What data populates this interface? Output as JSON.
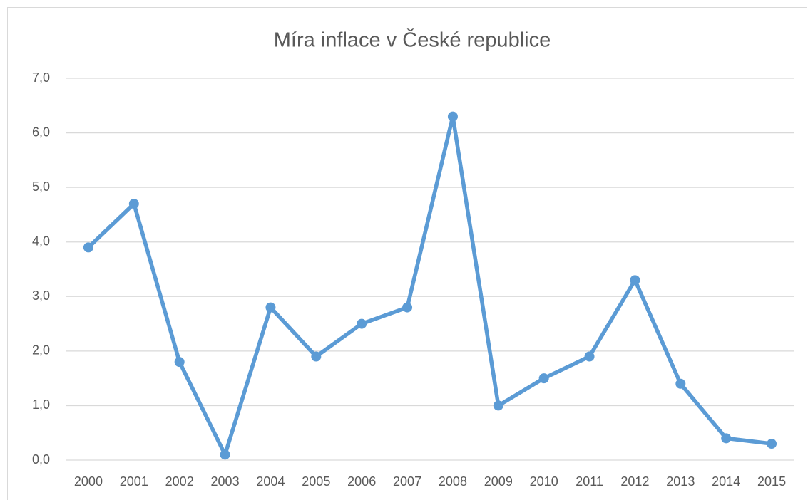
{
  "chart_data": {
    "type": "line",
    "title": "Míra inflace v České republice",
    "categories": [
      "2000",
      "2001",
      "2002",
      "2003",
      "2004",
      "2005",
      "2006",
      "2007",
      "2008",
      "2009",
      "2010",
      "2011",
      "2012",
      "2013",
      "2014",
      "2015"
    ],
    "values": [
      3.9,
      4.7,
      1.8,
      0.1,
      2.8,
      1.9,
      2.5,
      2.8,
      6.3,
      1.0,
      1.5,
      1.9,
      3.3,
      1.4,
      0.4,
      0.3
    ],
    "color": "#5b9bd5",
    "ylim": [
      0,
      7
    ],
    "yticks": [
      {
        "value": 0,
        "label": "0,0"
      },
      {
        "value": 1,
        "label": "1,0"
      },
      {
        "value": 2,
        "label": "2,0"
      },
      {
        "value": 3,
        "label": "3,0"
      },
      {
        "value": 4,
        "label": "4,0"
      },
      {
        "value": 5,
        "label": "5,0"
      },
      {
        "value": 6,
        "label": "6,0"
      },
      {
        "value": 7,
        "label": "7,0"
      }
    ],
    "grid": true
  }
}
